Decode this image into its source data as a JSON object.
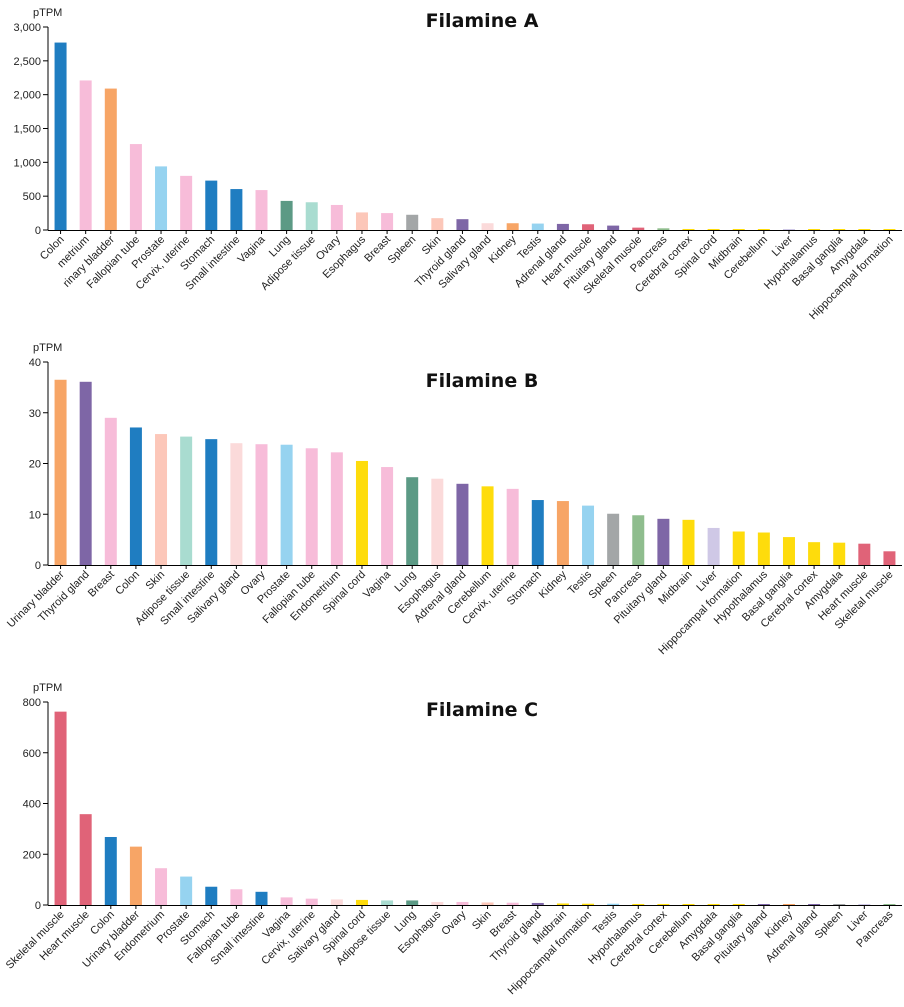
{
  "colors": {
    "blue": "#1f7dc1",
    "pink": "#f7bcd9",
    "orange": "#f7a566",
    "lightblue": "#96d3f0",
    "green": "#5c9a85",
    "mint": "#a9dcd0",
    "peach": "#fcc7b9",
    "lightpink": "#fbdada",
    "gray": "#a3a6a7",
    "purple": "#7e66a6",
    "red": "#e06378",
    "sage": "#8fbd8e",
    "yellow": "#fedc0c",
    "lavender": "#cfc8e6"
  },
  "chart_data": [
    {
      "type": "bar",
      "title": "Filamine A",
      "ylabel": "pTPM",
      "ylim": [
        0,
        3000
      ],
      "yticks": [
        0,
        500,
        1000,
        1500,
        2000,
        2500,
        3000
      ],
      "ytick_labels": [
        "0",
        "500",
        "1,000",
        "1,500",
        "2,000",
        "2,500",
        "3,000"
      ],
      "categories": [
        "Colon",
        "Endometrium",
        "Urinary bladder",
        "Fallopian tube",
        "Prostate",
        "Cervix, uterine",
        "Stomach",
        "Small intestine",
        "Vagina",
        "Lung",
        "Adipose tissue",
        "Ovary",
        "Esophagus",
        "Breast",
        "Spleen",
        "Skin",
        "Thyroid gland",
        "Salivary gland",
        "Kidney",
        "Testis",
        "Adrenal gland",
        "Heart muscle",
        "Pituitary gland",
        "Skeletal muscle",
        "Pancreas",
        "Cerebral cortex",
        "Spinal cord",
        "Midbrain",
        "Cerebellum",
        "Liver",
        "Hypothalamus",
        "Basal ganglia",
        "Amygdala",
        "Hippocampal formation"
      ],
      "category_labels": [
        "Colon",
        "metrium",
        "rinary bladder",
        "Fallopian tube",
        "Prostate",
        "Cervix, uterine",
        "Stomach",
        "Small intestine",
        "Vagina",
        "Lung",
        "Adipose tissue",
        "Ovary",
        "Esophagus",
        "Breast",
        "Spleen",
        "Skin",
        "Thyroid gland",
        "Salivary gland",
        "Kidney",
        "Testis",
        "Adrenal gland",
        "Heart muscle",
        "Pituitary gland",
        "Skeletal muscle",
        "Pancreas",
        "Cerebral cortex",
        "Spinal cord",
        "Midbrain",
        "Cerebellum",
        "Liver",
        "Hypothalamus",
        "Basal ganglia",
        "Amygdala",
        "Hippocampal formation"
      ],
      "values": [
        2770,
        2210,
        2090,
        1270,
        940,
        800,
        730,
        605,
        590,
        430,
        410,
        370,
        260,
        250,
        225,
        175,
        160,
        100,
        100,
        95,
        90,
        85,
        65,
        35,
        25,
        15,
        15,
        12,
        12,
        8,
        6,
        5,
        5,
        4
      ],
      "bar_colors": [
        "blue",
        "pink",
        "orange",
        "pink",
        "lightblue",
        "pink",
        "blue",
        "blue",
        "pink",
        "green",
        "mint",
        "pink",
        "peach",
        "pink",
        "gray",
        "peach",
        "purple",
        "lightpink",
        "orange",
        "lightblue",
        "purple",
        "red",
        "purple",
        "red",
        "sage",
        "yellow",
        "yellow",
        "yellow",
        "yellow",
        "lavender",
        "yellow",
        "yellow",
        "yellow",
        "yellow"
      ]
    },
    {
      "type": "bar",
      "title": "Filamine B",
      "ylabel": "pTPM",
      "ylim": [
        0,
        40
      ],
      "yticks": [
        0,
        10,
        20,
        30,
        40
      ],
      "ytick_labels": [
        "0",
        "10",
        "20",
        "30",
        "40"
      ],
      "categories": [
        "Urinary bladder",
        "Thyroid gland",
        "Breast",
        "Colon",
        "Skin",
        "Adipose tissue",
        "Small intestine",
        "Salivary gland",
        "Ovary",
        "Prostate",
        "Fallopian tube",
        "Endometrium",
        "Spinal cord",
        "Vagina",
        "Lung",
        "Esophagus",
        "Adrenal gland",
        "Cerebellum",
        "Cervix, uterine",
        "Stomach",
        "Kidney",
        "Testis",
        "Spleen",
        "Pancreas",
        "Pituitary gland",
        "Midbrain",
        "Liver",
        "Hippocampal formation",
        "Hypothalamus",
        "Basal ganglia",
        "Cerebral cortex",
        "Amygdala",
        "Heart muscle",
        "Skeletal muscle"
      ],
      "category_labels": [
        "Urinary bladder",
        "Thyroid gland",
        "Breast",
        "Colon",
        "Skin",
        "Adipose tissue",
        "Small intestine",
        "Salivary gland",
        "Ovary",
        "Prostate",
        "Fallopian tube",
        "Endometrium",
        "Spinal cord",
        "Vagina",
        "Lung",
        "Esophagus",
        "Adrenal gland",
        "Cerebellum",
        "Cervix, uterine",
        "Stomach",
        "Kidney",
        "Testis",
        "Spleen",
        "Pancreas",
        "Pituitary gland",
        "Midbrain",
        "Liver",
        "Hippocampal formation",
        "Hypothalamus",
        "Basal ganglia",
        "Cerebral cortex",
        "Amygdala",
        "Heart muscle",
        "Skeletal muscle"
      ],
      "values": [
        36.5,
        36.1,
        29.0,
        27.1,
        25.8,
        25.3,
        24.8,
        24.0,
        23.8,
        23.7,
        23.0,
        22.2,
        20.5,
        19.3,
        17.3,
        17.0,
        16.0,
        15.5,
        15.0,
        12.8,
        12.6,
        11.7,
        10.1,
        9.8,
        9.1,
        8.9,
        7.3,
        6.6,
        6.4,
        5.5,
        4.5,
        4.4,
        4.2,
        2.7
      ],
      "bar_colors": [
        "orange",
        "purple",
        "pink",
        "blue",
        "peach",
        "mint",
        "blue",
        "lightpink",
        "pink",
        "lightblue",
        "pink",
        "pink",
        "yellow",
        "pink",
        "green",
        "lightpink",
        "purple",
        "yellow",
        "pink",
        "blue",
        "orange",
        "lightblue",
        "gray",
        "sage",
        "purple",
        "yellow",
        "lavender",
        "yellow",
        "yellow",
        "yellow",
        "yellow",
        "yellow",
        "red",
        "red"
      ]
    },
    {
      "type": "bar",
      "title": "Filamine C",
      "ylabel": "pTPM",
      "ylim": [
        0,
        800
      ],
      "yticks": [
        0,
        200,
        400,
        600,
        800
      ],
      "ytick_labels": [
        "0",
        "200",
        "400",
        "600",
        "800"
      ],
      "categories": [
        "Skeletal muscle",
        "Heart muscle",
        "Colon",
        "Urinary bladder",
        "Endometrium",
        "Prostate",
        "Stomach",
        "Fallopian tube",
        "Small intestine",
        "Vagina",
        "Cervix, uterine",
        "Salivary gland",
        "Spinal cord",
        "Adipose tissue",
        "Lung",
        "Esophagus",
        "Ovary",
        "Skin",
        "Breast",
        "Thyroid gland",
        "Midbrain",
        "Hippocampal formation",
        "Testis",
        "Hypothalamus",
        "Cerebral cortex",
        "Cerebellum",
        "Amygdala",
        "Basal ganglia",
        "Pituitary gland",
        "Kidney",
        "Adrenal gland",
        "Spleen",
        "Liver",
        "Pancreas"
      ],
      "category_labels": [
        "Skeletal muscle",
        "Heart muscle",
        "Colon",
        "Urinary bladder",
        "Endometrium",
        "Prostate",
        "Stomach",
        "Fallopian tube",
        "Small intestine",
        "Vagina",
        "Cervix, uterine",
        "Salivary gland",
        "Spinal cord",
        "Adipose tissue",
        "Lung",
        "Esophagus",
        "Ovary",
        "Skin",
        "Breast",
        "Thyroid gland",
        "Midbrain",
        "Hippocampal formation",
        "Testis",
        "Hypothalamus",
        "Cerebral cortex",
        "Cerebellum",
        "Amygdala",
        "Basal ganglia",
        "Pituitary gland",
        "Kidney",
        "Adrenal gland",
        "Spleen",
        "Liver",
        "Pancreas"
      ],
      "values": [
        762,
        358,
        268,
        230,
        145,
        112,
        72,
        62,
        52,
        30,
        25,
        22,
        20,
        18,
        18,
        12,
        12,
        10,
        9,
        8,
        6,
        5,
        5,
        4,
        4,
        3,
        3,
        3,
        3,
        2,
        2,
        2,
        2,
        1
      ],
      "bar_colors": [
        "red",
        "red",
        "blue",
        "orange",
        "pink",
        "lightblue",
        "blue",
        "pink",
        "blue",
        "pink",
        "pink",
        "lightpink",
        "yellow",
        "mint",
        "green",
        "lightpink",
        "pink",
        "peach",
        "pink",
        "purple",
        "yellow",
        "yellow",
        "lightblue",
        "yellow",
        "yellow",
        "yellow",
        "yellow",
        "yellow",
        "purple",
        "orange",
        "purple",
        "gray",
        "lavender",
        "sage"
      ]
    }
  ]
}
